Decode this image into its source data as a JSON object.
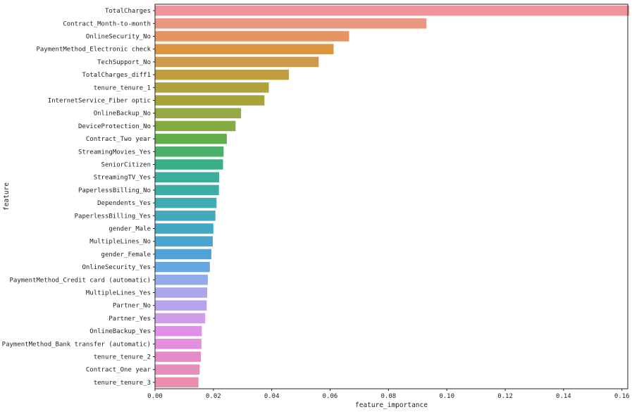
{
  "chart_data": {
    "type": "bar",
    "orientation": "horizontal",
    "xlabel": "feature_importance",
    "ylabel": "feature",
    "xlim": [
      0,
      0.162
    ],
    "xticks": [
      0.0,
      0.02,
      0.04,
      0.06,
      0.08,
      0.1,
      0.12,
      0.14,
      0.16
    ],
    "xtick_labels": [
      "0.00",
      "0.02",
      "0.04",
      "0.06",
      "0.08",
      "0.10",
      "0.12",
      "0.14",
      "0.16"
    ],
    "grid": false,
    "categories": [
      "TotalCharges",
      "Contract_Month-to-month",
      "OnlineSecurity_No",
      "PaymentMethod_Electronic check",
      "TechSupport_No",
      "TotalCharges_diff1",
      "tenure_tenure_1",
      "InternetService_Fiber optic",
      "OnlineBackup_No",
      "DeviceProtection_No",
      "Contract_Two year",
      "StreamingMovies_Yes",
      "SeniorCitizen",
      "StreamingTV_Yes",
      "PaperlessBilling_No",
      "Dependents_Yes",
      "PaperlessBilling_Yes",
      "gender_Male",
      "MultipleLines_No",
      "gender_Female",
      "OnlineSecurity_Yes",
      "PaymentMethod_Credit card (automatic)",
      "MultipleLines_Yes",
      "Partner_No",
      "Partner_Yes",
      "OnlineBackup_Yes",
      "PaymentMethod_Bank transfer (automatic)",
      "tenure_tenure_2",
      "Contract_One year",
      "tenure_tenure_3"
    ],
    "values": [
      0.1625,
      0.093,
      0.0665,
      0.0612,
      0.0561,
      0.0459,
      0.039,
      0.0375,
      0.0295,
      0.0276,
      0.0246,
      0.0235,
      0.0233,
      0.022,
      0.0219,
      0.0211,
      0.0207,
      0.02,
      0.0198,
      0.0193,
      0.0188,
      0.0181,
      0.0179,
      0.0177,
      0.0172,
      0.016,
      0.0159,
      0.0157,
      0.0153,
      0.0149
    ],
    "colors": [
      "#ef9299",
      "#ea9782",
      "#e59464",
      "#dd9441",
      "#cf9a47",
      "#c09d3d",
      "#b2a23c",
      "#a6a438",
      "#96a845",
      "#84ab42",
      "#5fb04c",
      "#49b16a",
      "#3ab08a",
      "#3cad9b",
      "#3daca5",
      "#40abb0",
      "#43aabb",
      "#43a8c3",
      "#48a6d0",
      "#4ea4d8",
      "#67a7e2",
      "#94aae8",
      "#a9a6ea",
      "#b7a3ec",
      "#d19dea",
      "#df8fe8",
      "#e38ede",
      "#e48ac8",
      "#e68ebd",
      "#ea8fb1"
    ]
  }
}
